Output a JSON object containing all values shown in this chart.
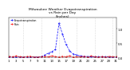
{
  "title": "Milwaukee Weather Evapotranspiration\nvs Rain per Day\n(Inches)",
  "title_fontsize": 3.2,
  "et_color": "#0000ff",
  "rain_color": "#ff0000",
  "legend_et": "Evapotranspiration",
  "legend_rain": "Rain",
  "background_color": "#ffffff",
  "xlim": [
    1,
    31
  ],
  "ylim": [
    0,
    1.4
  ],
  "days": [
    1,
    2,
    3,
    4,
    5,
    6,
    7,
    8,
    9,
    10,
    11,
    12,
    13,
    14,
    15,
    16,
    17,
    18,
    19,
    20,
    21,
    22,
    23,
    24,
    25,
    26,
    27,
    28,
    29,
    30,
    31
  ],
  "et": [
    0.01,
    0.01,
    0.01,
    0.01,
    0.01,
    0.01,
    0.01,
    0.01,
    0.01,
    0.02,
    0.08,
    0.15,
    0.2,
    0.28,
    1.2,
    0.8,
    0.45,
    0.22,
    0.12,
    0.08,
    0.05,
    0.04,
    0.03,
    0.02,
    0.02,
    0.02,
    0.02,
    0.02,
    0.01,
    0.01,
    0.01
  ],
  "rain": [
    0.04,
    0.02,
    0.05,
    0.02,
    0.01,
    0.03,
    0.04,
    0.01,
    0.01,
    0.02,
    0.04,
    0.02,
    0.05,
    0.03,
    0.01,
    0.04,
    0.02,
    0.06,
    0.01,
    0.03,
    0.02,
    0.04,
    0.01,
    0.05,
    0.02,
    0.01,
    0.03,
    0.01,
    0.04,
    0.02,
    0.02
  ],
  "grid_color": "#aaaaaa",
  "tick_fontsize": 2.8,
  "xticks": [
    1,
    3,
    5,
    7,
    9,
    11,
    13,
    15,
    17,
    19,
    21,
    23,
    25,
    27,
    29,
    31
  ],
  "vgrid_ticks": [
    5,
    10,
    15,
    20,
    25,
    30
  ]
}
